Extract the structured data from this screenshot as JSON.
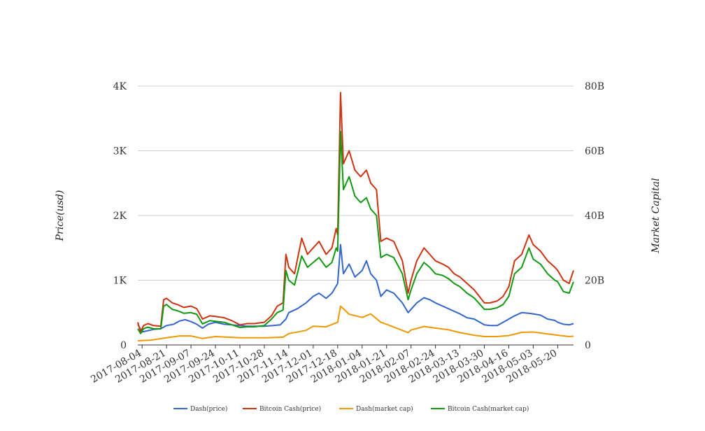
{
  "chart_data": {
    "type": "line",
    "xlabel": "",
    "ylabel": "Price(usd)",
    "y2label": "Market Capital",
    "ylim": [
      0,
      4000
    ],
    "y2lim": [
      0,
      80000000000
    ],
    "yticks": [
      "0",
      "1K",
      "2K",
      "3K",
      "4K"
    ],
    "y2ticks": [
      "0",
      "20B",
      "40B",
      "60B",
      "80B"
    ],
    "grid": true,
    "legend_position": "bottom",
    "x_tick_labels": [
      "2017-08-04",
      "2017-08-21",
      "2017-09-07",
      "2017-09-24",
      "2017-10-11",
      "2017-10-28",
      "2017-11-14",
      "2017-12-01",
      "2017-12-18",
      "2018-01-04",
      "2018-01-21",
      "2018-02-07",
      "2018-02-24",
      "2018-03-13",
      "2018-03-30",
      "2018-04-16",
      "2018-05-03",
      "2018-05-20"
    ],
    "x_start": "2017-08-01",
    "x_end": "2018-05-31",
    "series": [
      {
        "name": "Dash(price)",
        "axis": "left",
        "color": "#3366cc",
        "points": [
          [
            "2017-08-01",
            320
          ],
          [
            "2017-08-04",
            200
          ],
          [
            "2017-08-08",
            220
          ],
          [
            "2017-08-12",
            240
          ],
          [
            "2017-08-17",
            250
          ],
          [
            "2017-08-21",
            300
          ],
          [
            "2017-08-26",
            320
          ],
          [
            "2017-08-30",
            370
          ],
          [
            "2017-09-03",
            390
          ],
          [
            "2017-09-07",
            360
          ],
          [
            "2017-09-11",
            320
          ],
          [
            "2017-09-15",
            260
          ],
          [
            "2017-09-19",
            320
          ],
          [
            "2017-09-24",
            350
          ],
          [
            "2017-09-30",
            320
          ],
          [
            "2017-10-05",
            310
          ],
          [
            "2017-10-11",
            300
          ],
          [
            "2017-10-16",
            290
          ],
          [
            "2017-10-21",
            290
          ],
          [
            "2017-10-28",
            290
          ],
          [
            "2017-11-03",
            300
          ],
          [
            "2017-11-08",
            310
          ],
          [
            "2017-11-12",
            400
          ],
          [
            "2017-11-14",
            500
          ],
          [
            "2017-11-20",
            560
          ],
          [
            "2017-11-26",
            650
          ],
          [
            "2017-12-01",
            750
          ],
          [
            "2017-12-05",
            800
          ],
          [
            "2017-12-10",
            720
          ],
          [
            "2017-12-14",
            800
          ],
          [
            "2017-12-18",
            950
          ],
          [
            "2017-12-20",
            1550
          ],
          [
            "2017-12-22",
            1100
          ],
          [
            "2017-12-26",
            1250
          ],
          [
            "2017-12-30",
            1050
          ],
          [
            "2018-01-04",
            1150
          ],
          [
            "2018-01-07",
            1300
          ],
          [
            "2018-01-10",
            1100
          ],
          [
            "2018-01-14",
            1000
          ],
          [
            "2018-01-17",
            750
          ],
          [
            "2018-01-21",
            850
          ],
          [
            "2018-01-26",
            800
          ],
          [
            "2018-02-01",
            650
          ],
          [
            "2018-02-05",
            500
          ],
          [
            "2018-02-07",
            550
          ],
          [
            "2018-02-11",
            650
          ],
          [
            "2018-02-16",
            730
          ],
          [
            "2018-02-20",
            700
          ],
          [
            "2018-02-24",
            650
          ],
          [
            "2018-03-01",
            600
          ],
          [
            "2018-03-05",
            560
          ],
          [
            "2018-03-09",
            520
          ],
          [
            "2018-03-13",
            480
          ],
          [
            "2018-03-18",
            420
          ],
          [
            "2018-03-23",
            400
          ],
          [
            "2018-03-30",
            310
          ],
          [
            "2018-04-03",
            300
          ],
          [
            "2018-04-08",
            300
          ],
          [
            "2018-04-12",
            350
          ],
          [
            "2018-04-16",
            400
          ],
          [
            "2018-04-20",
            450
          ],
          [
            "2018-04-25",
            500
          ],
          [
            "2018-04-30",
            490
          ],
          [
            "2018-05-03",
            480
          ],
          [
            "2018-05-08",
            460
          ],
          [
            "2018-05-13",
            400
          ],
          [
            "2018-05-18",
            380
          ],
          [
            "2018-05-20",
            350
          ],
          [
            "2018-05-24",
            320
          ],
          [
            "2018-05-28",
            310
          ],
          [
            "2018-05-31",
            330
          ]
        ]
      },
      {
        "name": "Bitcoin Cash(price)",
        "axis": "left",
        "color": "#cc3311",
        "points": [
          [
            "2017-08-01",
            350
          ],
          [
            "2017-08-03",
            200
          ],
          [
            "2017-08-05",
            300
          ],
          [
            "2017-08-08",
            330
          ],
          [
            "2017-08-12",
            300
          ],
          [
            "2017-08-17",
            290
          ],
          [
            "2017-08-19",
            700
          ],
          [
            "2017-08-21",
            720
          ],
          [
            "2017-08-25",
            650
          ],
          [
            "2017-08-29",
            620
          ],
          [
            "2017-09-02",
            580
          ],
          [
            "2017-09-07",
            600
          ],
          [
            "2017-09-11",
            560
          ],
          [
            "2017-09-15",
            400
          ],
          [
            "2017-09-20",
            450
          ],
          [
            "2017-09-24",
            440
          ],
          [
            "2017-09-30",
            420
          ],
          [
            "2017-10-05",
            380
          ],
          [
            "2017-10-11",
            310
          ],
          [
            "2017-10-16",
            330
          ],
          [
            "2017-10-21",
            330
          ],
          [
            "2017-10-28",
            350
          ],
          [
            "2017-11-02",
            450
          ],
          [
            "2017-11-06",
            600
          ],
          [
            "2017-11-10",
            650
          ],
          [
            "2017-11-12",
            1400
          ],
          [
            "2017-11-14",
            1200
          ],
          [
            "2017-11-18",
            1100
          ],
          [
            "2017-11-23",
            1650
          ],
          [
            "2017-11-27",
            1400
          ],
          [
            "2017-12-01",
            1500
          ],
          [
            "2017-12-05",
            1600
          ],
          [
            "2017-12-10",
            1400
          ],
          [
            "2017-12-14",
            1500
          ],
          [
            "2017-12-17",
            1800
          ],
          [
            "2017-12-18",
            1700
          ],
          [
            "2017-12-20",
            3900
          ],
          [
            "2017-12-22",
            2800
          ],
          [
            "2017-12-26",
            3000
          ],
          [
            "2017-12-30",
            2700
          ],
          [
            "2018-01-03",
            2600
          ],
          [
            "2018-01-07",
            2700
          ],
          [
            "2018-01-10",
            2500
          ],
          [
            "2018-01-14",
            2400
          ],
          [
            "2018-01-17",
            1600
          ],
          [
            "2018-01-21",
            1650
          ],
          [
            "2018-01-26",
            1600
          ],
          [
            "2018-02-01",
            1300
          ],
          [
            "2018-02-05",
            800
          ],
          [
            "2018-02-07",
            1000
          ],
          [
            "2018-02-11",
            1300
          ],
          [
            "2018-02-16",
            1500
          ],
          [
            "2018-02-20",
            1400
          ],
          [
            "2018-02-24",
            1300
          ],
          [
            "2018-03-01",
            1250
          ],
          [
            "2018-03-05",
            1200
          ],
          [
            "2018-03-09",
            1100
          ],
          [
            "2018-03-13",
            1050
          ],
          [
            "2018-03-18",
            950
          ],
          [
            "2018-03-23",
            850
          ],
          [
            "2018-03-30",
            650
          ],
          [
            "2018-04-03",
            650
          ],
          [
            "2018-04-08",
            680
          ],
          [
            "2018-04-12",
            750
          ],
          [
            "2018-04-16",
            900
          ],
          [
            "2018-04-20",
            1300
          ],
          [
            "2018-04-25",
            1400
          ],
          [
            "2018-04-30",
            1700
          ],
          [
            "2018-05-03",
            1550
          ],
          [
            "2018-05-08",
            1450
          ],
          [
            "2018-05-13",
            1300
          ],
          [
            "2018-05-18",
            1200
          ],
          [
            "2018-05-20",
            1150
          ],
          [
            "2018-05-24",
            1000
          ],
          [
            "2018-05-28",
            950
          ],
          [
            "2018-05-31",
            1150
          ]
        ]
      },
      {
        "name": "Dash(market cap)",
        "axis": "right",
        "color": "#ee9900",
        "points": [
          [
            "2017-08-01",
            1300000000
          ],
          [
            "2017-08-10",
            1500000000
          ],
          [
            "2017-08-21",
            2200000000
          ],
          [
            "2017-08-30",
            2800000000
          ],
          [
            "2017-09-07",
            2800000000
          ],
          [
            "2017-09-15",
            2000000000
          ],
          [
            "2017-09-24",
            2600000000
          ],
          [
            "2017-10-11",
            2200000000
          ],
          [
            "2017-10-28",
            2200000000
          ],
          [
            "2017-11-10",
            2400000000
          ],
          [
            "2017-11-14",
            3500000000
          ],
          [
            "2017-11-26",
            4500000000
          ],
          [
            "2017-12-01",
            5800000000
          ],
          [
            "2017-12-10",
            5600000000
          ],
          [
            "2017-12-18",
            7000000000
          ],
          [
            "2017-12-20",
            12000000000
          ],
          [
            "2017-12-26",
            9500000000
          ],
          [
            "2018-01-04",
            8500000000
          ],
          [
            "2018-01-10",
            9600000000
          ],
          [
            "2018-01-17",
            7000000000
          ],
          [
            "2018-01-21",
            6400000000
          ],
          [
            "2018-02-05",
            3800000000
          ],
          [
            "2018-02-07",
            4600000000
          ],
          [
            "2018-02-16",
            5700000000
          ],
          [
            "2018-02-24",
            5200000000
          ],
          [
            "2018-03-05",
            4700000000
          ],
          [
            "2018-03-13",
            3800000000
          ],
          [
            "2018-03-23",
            3000000000
          ],
          [
            "2018-03-30",
            2600000000
          ],
          [
            "2018-04-08",
            2600000000
          ],
          [
            "2018-04-16",
            2900000000
          ],
          [
            "2018-04-25",
            3900000000
          ],
          [
            "2018-05-03",
            4000000000
          ],
          [
            "2018-05-13",
            3400000000
          ],
          [
            "2018-05-20",
            3000000000
          ],
          [
            "2018-05-28",
            2600000000
          ],
          [
            "2018-05-31",
            2700000000
          ]
        ]
      },
      {
        "name": "Bitcoin Cash(market cap)",
        "axis": "right",
        "color": "#119911",
        "points": [
          [
            "2017-08-01",
            5000000000
          ],
          [
            "2017-08-03",
            3500000000
          ],
          [
            "2017-08-05",
            5000000000
          ],
          [
            "2017-08-08",
            5500000000
          ],
          [
            "2017-08-12",
            5000000000
          ],
          [
            "2017-08-17",
            5000000000
          ],
          [
            "2017-08-19",
            12000000000
          ],
          [
            "2017-08-21",
            12500000000
          ],
          [
            "2017-08-25",
            11000000000
          ],
          [
            "2017-08-29",
            10500000000
          ],
          [
            "2017-09-02",
            9800000000
          ],
          [
            "2017-09-07",
            10000000000
          ],
          [
            "2017-09-11",
            9500000000
          ],
          [
            "2017-09-15",
            6500000000
          ],
          [
            "2017-09-20",
            7500000000
          ],
          [
            "2017-09-24",
            7300000000
          ],
          [
            "2017-09-30",
            7000000000
          ],
          [
            "2017-10-05",
            6300000000
          ],
          [
            "2017-10-11",
            5400000000
          ],
          [
            "2017-10-16",
            5600000000
          ],
          [
            "2017-10-21",
            5600000000
          ],
          [
            "2017-10-28",
            6000000000
          ],
          [
            "2017-11-02",
            8000000000
          ],
          [
            "2017-11-06",
            10000000000
          ],
          [
            "2017-11-10",
            10800000000
          ],
          [
            "2017-11-12",
            23000000000
          ],
          [
            "2017-11-14",
            20000000000
          ],
          [
            "2017-11-18",
            18500000000
          ],
          [
            "2017-11-23",
            27500000000
          ],
          [
            "2017-11-27",
            24000000000
          ],
          [
            "2017-12-01",
            25500000000
          ],
          [
            "2017-12-05",
            27000000000
          ],
          [
            "2017-12-10",
            24000000000
          ],
          [
            "2017-12-14",
            25500000000
          ],
          [
            "2017-12-17",
            30000000000
          ],
          [
            "2017-12-18",
            29000000000
          ],
          [
            "2017-12-20",
            66000000000
          ],
          [
            "2017-12-22",
            48000000000
          ],
          [
            "2017-12-26",
            52000000000
          ],
          [
            "2017-12-30",
            46000000000
          ],
          [
            "2018-01-03",
            44000000000
          ],
          [
            "2018-01-07",
            45500000000
          ],
          [
            "2018-01-10",
            42000000000
          ],
          [
            "2018-01-14",
            40000000000
          ],
          [
            "2018-01-17",
            27000000000
          ],
          [
            "2018-01-21",
            28000000000
          ],
          [
            "2018-01-26",
            27000000000
          ],
          [
            "2018-02-01",
            22000000000
          ],
          [
            "2018-02-05",
            14000000000
          ],
          [
            "2018-02-07",
            17000000000
          ],
          [
            "2018-02-11",
            22000000000
          ],
          [
            "2018-02-16",
            25500000000
          ],
          [
            "2018-02-20",
            24000000000
          ],
          [
            "2018-02-24",
            22000000000
          ],
          [
            "2018-03-01",
            21500000000
          ],
          [
            "2018-03-05",
            20500000000
          ],
          [
            "2018-03-09",
            19000000000
          ],
          [
            "2018-03-13",
            18000000000
          ],
          [
            "2018-03-18",
            16000000000
          ],
          [
            "2018-03-23",
            14500000000
          ],
          [
            "2018-03-30",
            11000000000
          ],
          [
            "2018-04-03",
            11000000000
          ],
          [
            "2018-04-08",
            11500000000
          ],
          [
            "2018-04-12",
            12500000000
          ],
          [
            "2018-04-16",
            15000000000
          ],
          [
            "2018-04-20",
            22000000000
          ],
          [
            "2018-04-25",
            24000000000
          ],
          [
            "2018-04-30",
            30000000000
          ],
          [
            "2018-05-03",
            26500000000
          ],
          [
            "2018-05-08",
            25000000000
          ],
          [
            "2018-05-13",
            22000000000
          ],
          [
            "2018-05-18",
            20000000000
          ],
          [
            "2018-05-20",
            19500000000
          ],
          [
            "2018-05-24",
            16500000000
          ],
          [
            "2018-05-28",
            16000000000
          ],
          [
            "2018-05-31",
            19500000000
          ]
        ]
      }
    ]
  }
}
